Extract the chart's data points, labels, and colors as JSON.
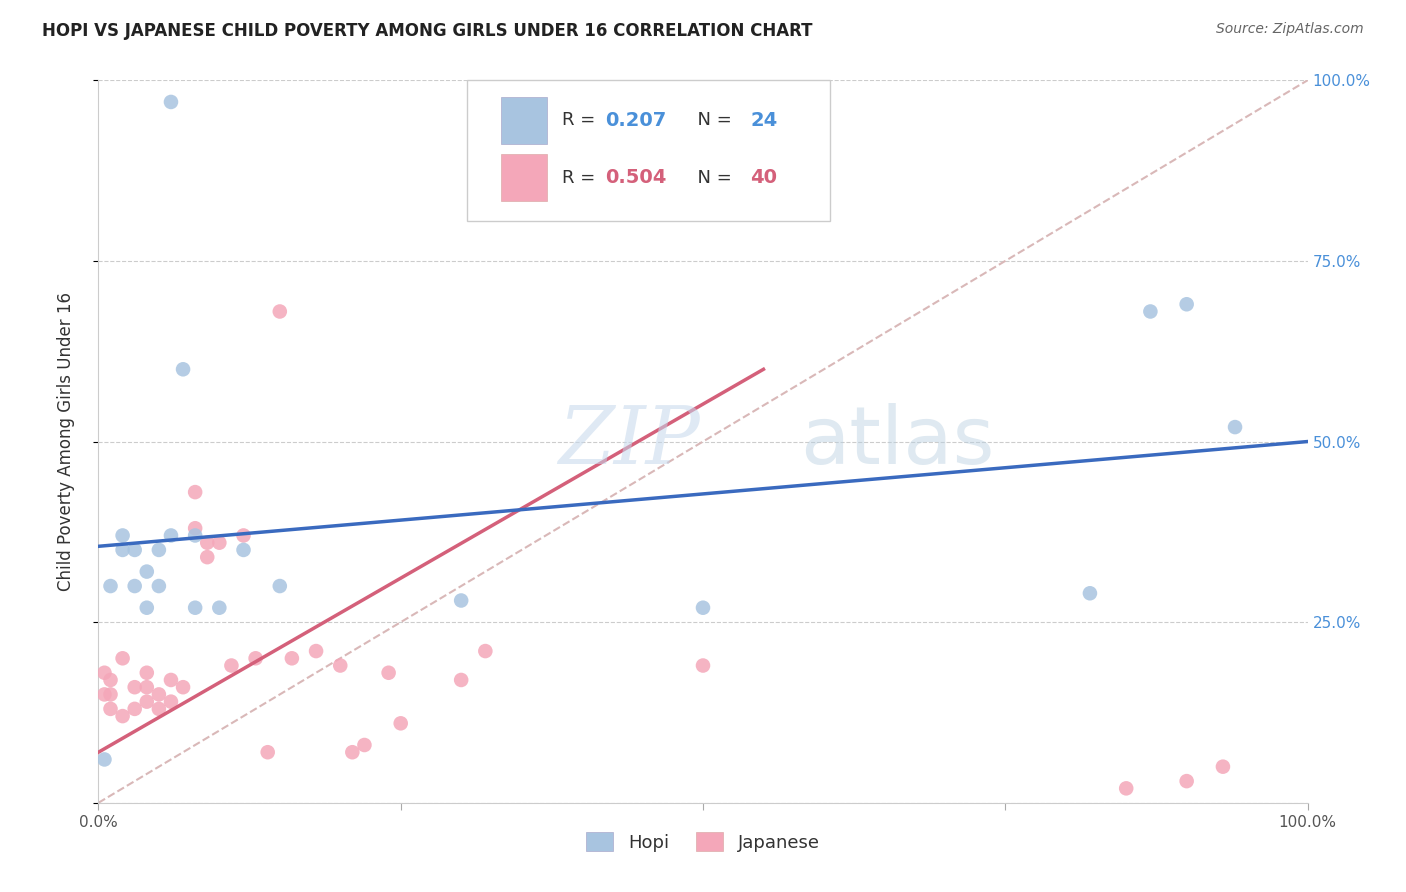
{
  "title": "HOPI VS JAPANESE CHILD POVERTY AMONG GIRLS UNDER 16 CORRELATION CHART",
  "source": "Source: ZipAtlas.com",
  "ylabel": "Child Poverty Among Girls Under 16",
  "xlim": [
    0,
    1.0
  ],
  "ylim": [
    0,
    1.0
  ],
  "hopi_color": "#a8c4e0",
  "japanese_color": "#f4a7b9",
  "hopi_line_color": "#3a6abf",
  "japanese_line_color": "#d4607a",
  "diagonal_color": "#d9b8b8",
  "background_color": "#ffffff",
  "grid_color": "#cccccc",
  "hopi_R": "0.207",
  "hopi_N": "24",
  "japanese_R": "0.504",
  "japanese_N": "40",
  "hopi_x": [
    0.02,
    0.06,
    0.005,
    0.01,
    0.02,
    0.03,
    0.03,
    0.04,
    0.04,
    0.05,
    0.05,
    0.06,
    0.07,
    0.08,
    0.08,
    0.1,
    0.12,
    0.15,
    0.3,
    0.5,
    0.82,
    0.87,
    0.9,
    0.94
  ],
  "hopi_y": [
    0.37,
    0.97,
    0.06,
    0.3,
    0.35,
    0.3,
    0.35,
    0.27,
    0.32,
    0.3,
    0.35,
    0.37,
    0.6,
    0.37,
    0.27,
    0.27,
    0.35,
    0.3,
    0.28,
    0.27,
    0.29,
    0.68,
    0.69,
    0.52
  ],
  "japanese_x": [
    0.005,
    0.005,
    0.01,
    0.01,
    0.01,
    0.02,
    0.02,
    0.03,
    0.03,
    0.04,
    0.04,
    0.04,
    0.05,
    0.05,
    0.06,
    0.06,
    0.07,
    0.08,
    0.08,
    0.09,
    0.09,
    0.1,
    0.11,
    0.12,
    0.13,
    0.14,
    0.15,
    0.16,
    0.18,
    0.2,
    0.21,
    0.22,
    0.24,
    0.25,
    0.3,
    0.32,
    0.5,
    0.85,
    0.9,
    0.93
  ],
  "japanese_y": [
    0.15,
    0.18,
    0.13,
    0.15,
    0.17,
    0.12,
    0.2,
    0.13,
    0.16,
    0.14,
    0.16,
    0.18,
    0.13,
    0.15,
    0.14,
    0.17,
    0.16,
    0.38,
    0.43,
    0.34,
    0.36,
    0.36,
    0.19,
    0.37,
    0.2,
    0.07,
    0.68,
    0.2,
    0.21,
    0.19,
    0.07,
    0.08,
    0.18,
    0.11,
    0.17,
    0.21,
    0.19,
    0.02,
    0.03,
    0.05
  ],
  "hopi_line_x0": 0.0,
  "hopi_line_y0": 0.355,
  "hopi_line_x1": 1.0,
  "hopi_line_y1": 0.5,
  "japanese_line_x0": 0.0,
  "japanese_line_y0": 0.07,
  "japanese_line_x1": 0.55,
  "japanese_line_y1": 0.6,
  "marker_size": 110,
  "watermark_text": "ZIPatlas",
  "bottom_legend_labels": [
    "Hopi",
    "Japanese"
  ]
}
